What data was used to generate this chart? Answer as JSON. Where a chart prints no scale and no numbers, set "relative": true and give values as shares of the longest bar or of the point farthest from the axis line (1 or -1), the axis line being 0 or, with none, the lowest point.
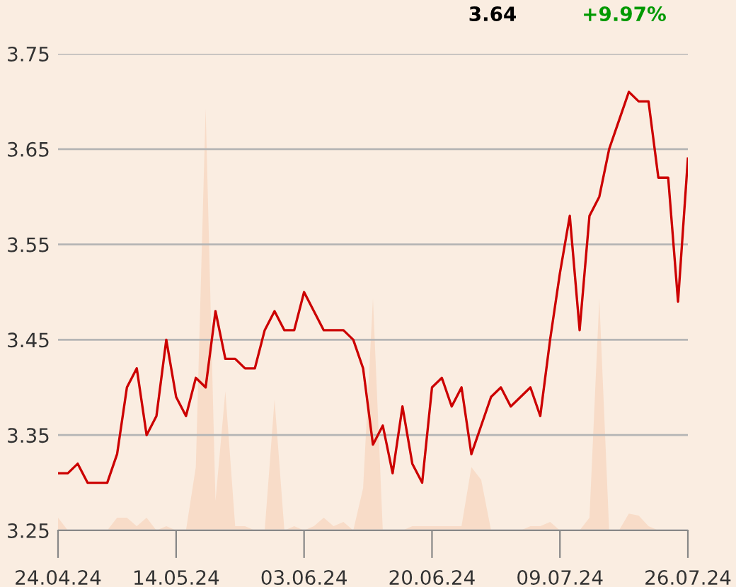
{
  "chart_data": [
    {
      "type": "line",
      "categories": [
        "24.04.24",
        null,
        null,
        null,
        null,
        null,
        null,
        null,
        null,
        null,
        null,
        null,
        "14.05.24",
        null,
        null,
        null,
        null,
        null,
        null,
        null,
        null,
        null,
        null,
        null,
        null,
        "03.06.24",
        null,
        null,
        null,
        null,
        null,
        null,
        null,
        null,
        null,
        null,
        null,
        null,
        "20.06.24",
        null,
        null,
        null,
        null,
        null,
        null,
        null,
        null,
        null,
        null,
        null,
        null,
        "09.07.24",
        null,
        null,
        null,
        null,
        null,
        null,
        null,
        null,
        null,
        null,
        null,
        null,
        "26.07.24"
      ],
      "series": [
        {
          "color": "#cc0000",
          "values": [
            3.31,
            3.31,
            3.32,
            3.3,
            3.3,
            3.3,
            3.33,
            3.4,
            3.42,
            3.35,
            3.37,
            3.45,
            3.39,
            3.37,
            3.41,
            3.4,
            3.48,
            3.43,
            3.43,
            3.42,
            3.42,
            3.46,
            3.48,
            3.46,
            3.46,
            3.5,
            3.48,
            3.46,
            3.46,
            3.46,
            3.45,
            3.42,
            3.34,
            3.36,
            3.31,
            3.38,
            3.32,
            3.3,
            3.4,
            3.41,
            3.38,
            3.4,
            3.33,
            3.36,
            3.39,
            3.4,
            3.38,
            3.39,
            3.4,
            3.37,
            3.45,
            3.52,
            3.58,
            3.46,
            3.58,
            3.6,
            3.65,
            3.68,
            3.71,
            3.7,
            3.7,
            3.62,
            3.62,
            3.49,
            3.64
          ]
        }
      ],
      "ylim": [
        3.25,
        3.75
      ],
      "yticks": [
        {
          "value": 3.25,
          "label": "3.25"
        },
        {
          "value": 3.35,
          "label": "3.35"
        },
        {
          "value": 3.45,
          "label": "3.45"
        },
        {
          "value": 3.55,
          "label": "3.55"
        },
        {
          "value": 3.65,
          "label": "3.65"
        },
        {
          "value": 3.75,
          "label": "3.75"
        }
      ],
      "grid": "y",
      "marker": "none",
      "line_style": "solid",
      "annotations": [
        "3.64",
        "+9.97%"
      ]
    },
    {
      "type": "area",
      "relative": true,
      "tick_labels": false,
      "categories": [
        null,
        null,
        null,
        null,
        null,
        null,
        null,
        null,
        null,
        null,
        null,
        null,
        null,
        null,
        null,
        null,
        null,
        null,
        null,
        null,
        null,
        null,
        null,
        null,
        null,
        null,
        null,
        null,
        null,
        null,
        null,
        null,
        null,
        null,
        null,
        null,
        null,
        null,
        null,
        null,
        null,
        null,
        null,
        null,
        null,
        null,
        null,
        null,
        null,
        null,
        null,
        null,
        null,
        null,
        null,
        null,
        null,
        null,
        null,
        null,
        null,
        null,
        null,
        null,
        null
      ],
      "series": [
        {
          "color": "#f8dcc8",
          "values": [
            0.03,
            0,
            0,
            0,
            0,
            0,
            0.03,
            0.03,
            0.01,
            0.03,
            0,
            0.01,
            0,
            0,
            0.15,
            1.0,
            0.07,
            0.33,
            0.01,
            0.01,
            0,
            0,
            0.31,
            0,
            0.01,
            0,
            0.01,
            0.03,
            0.01,
            0.02,
            0,
            0.1,
            0.55,
            0,
            0,
            0,
            0.01,
            0.01,
            0.01,
            0.01,
            0.01,
            0.01,
            0.15,
            0.12,
            0,
            0,
            0,
            0,
            0.01,
            0.01,
            0.02,
            0,
            0,
            0,
            0.03,
            0.55,
            0,
            0,
            0.04,
            0.035,
            0.01,
            0,
            0,
            0,
            0
          ]
        }
      ]
    }
  ]
}
